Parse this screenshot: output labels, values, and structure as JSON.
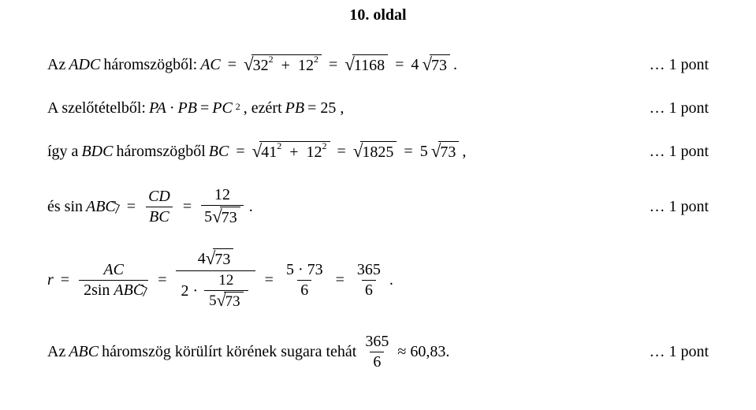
{
  "header": "10. oldal",
  "lines": {
    "l1": {
      "prefix": "Az ",
      "tri": "ADC",
      "word": " háromszögből:  ",
      "AC": "AC",
      "rad1_a": "32",
      "rad1_b": "12",
      "rad2": "1168",
      "coeff3": "4",
      "rad3": "73",
      "period": " .",
      "pts": "… 1 pont"
    },
    "l2": {
      "prefix": "A szelőtételből:  ",
      "PA": "PA",
      "dot": " · ",
      "PB": "PB",
      "eq": " = ",
      "PC": "PC",
      "tail": " , ezért  ",
      "PB2": "PB",
      "eq25": " = 25 ,",
      "pts": "… 1 pont"
    },
    "l3": {
      "prefix": "így a ",
      "tri": "BDC",
      "word": " háromszögből  ",
      "BC": "BC",
      "rad1_a": "41",
      "rad1_b": "12",
      "rad2": "1825",
      "coeff3": "5",
      "rad3": "73",
      "comma": " ,",
      "pts": "… 1 pont"
    },
    "l4": {
      "prefix": "és  sin ",
      "ABC": "ABC",
      "CD": "CD",
      "BC": "BC",
      "num": "12",
      "den_coeff": "5",
      "den_rad": "73",
      "period": " .",
      "pts": "… 1 pont"
    },
    "l5": {
      "r": "r",
      "AC": "AC",
      "two": "2",
      "sin": "sin ",
      "ABC": "ABC",
      "n1": "4",
      "n1rad": "73",
      "d1a": "2",
      "d1b": "12",
      "d1c_coeff": "5",
      "d1c_rad": "73",
      "n2": "5 · 73",
      "d2": "6",
      "n3": "365",
      "d3": "6",
      "period": " ."
    },
    "l6": {
      "prefix": "Az ",
      "ABC": "ABC",
      "word": " háromszög körülírt körének sugara tehát ",
      "num": "365",
      "den": "6",
      "approx": " ≈ 60,83.",
      "pts": "… 1 pont"
    }
  }
}
